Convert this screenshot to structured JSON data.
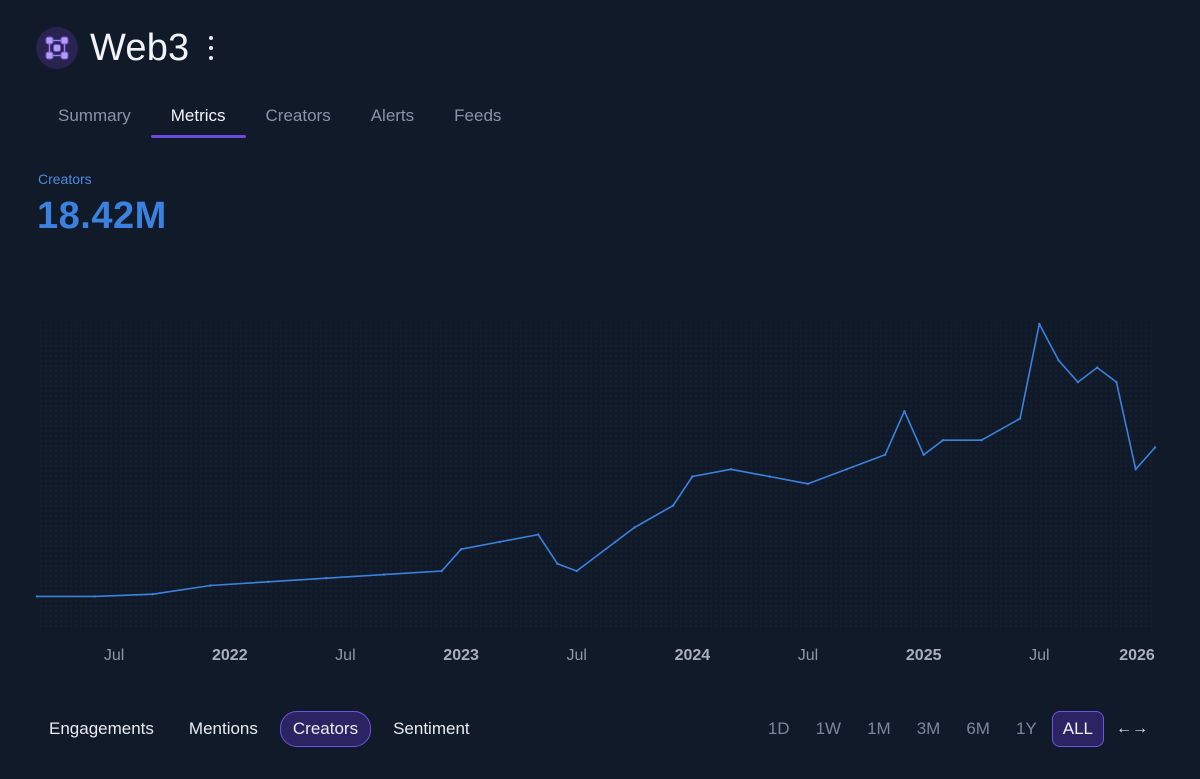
{
  "app": {
    "title": "Web3",
    "logo_icon": "network-cube-logo",
    "accent": "#6d4ae0"
  },
  "tabs": [
    {
      "label": "Summary",
      "active": false
    },
    {
      "label": "Metrics",
      "active": true
    },
    {
      "label": "Creators",
      "active": false
    },
    {
      "label": "Alerts",
      "active": false
    },
    {
      "label": "Feeds",
      "active": false
    }
  ],
  "metric": {
    "label": "Creators",
    "value": "18.42M",
    "color": "#3b82e0"
  },
  "chart_data": {
    "type": "line",
    "title": "",
    "xlabel": "",
    "ylabel": "",
    "x_range": [
      "2021-03",
      "2026-01"
    ],
    "x_ticks": [
      "Jul",
      "2022",
      "Jul",
      "2023",
      "Jul",
      "2024",
      "Jul",
      "2025",
      "Jul",
      "2026"
    ],
    "x": [
      "2021-03",
      "2021-06",
      "2021-09",
      "2021-12",
      "2022-03",
      "2022-06",
      "2022-09",
      "2022-12",
      "2023-01",
      "2023-03",
      "2023-05",
      "2023-06",
      "2023-07",
      "2023-09",
      "2023-10",
      "2023-12",
      "2024-01",
      "2024-03",
      "2024-05",
      "2024-07",
      "2024-09",
      "2024-11",
      "2024-12",
      "2025-01",
      "2025-02",
      "2025-04",
      "2025-06",
      "2025-07",
      "2025-08",
      "2025-09",
      "2025-10",
      "2025-11",
      "2025-12",
      "2026-01"
    ],
    "series": [
      {
        "values": [
          0.5,
          0.5,
          0.8,
          2.0,
          2.5,
          3.0,
          3.5,
          4.0,
          7.0,
          8.0,
          9.0,
          5.0,
          4.0,
          8.0,
          10.0,
          13.0,
          17.0,
          18.0,
          17.0,
          16.0,
          18.0,
          20.0,
          26.0,
          20.0,
          22.0,
          22.0,
          25.0,
          38.0,
          33.0,
          30.0,
          32.0,
          30.0,
          18.0,
          21.0
        ]
      }
    ],
    "grid": true,
    "legend": "none",
    "line_color": "#3b82e0"
  },
  "metric_tabs": [
    {
      "label": "Engagements",
      "active": false
    },
    {
      "label": "Mentions",
      "active": false
    },
    {
      "label": "Creators",
      "active": true
    },
    {
      "label": "Sentiment",
      "active": false
    }
  ],
  "ranges": [
    {
      "label": "1D",
      "active": false
    },
    {
      "label": "1W",
      "active": false
    },
    {
      "label": "1M",
      "active": false
    },
    {
      "label": "3M",
      "active": false
    },
    {
      "label": "6M",
      "active": false
    },
    {
      "label": "1Y",
      "active": false
    },
    {
      "label": "ALL",
      "active": true
    }
  ],
  "expand_label": "←→"
}
